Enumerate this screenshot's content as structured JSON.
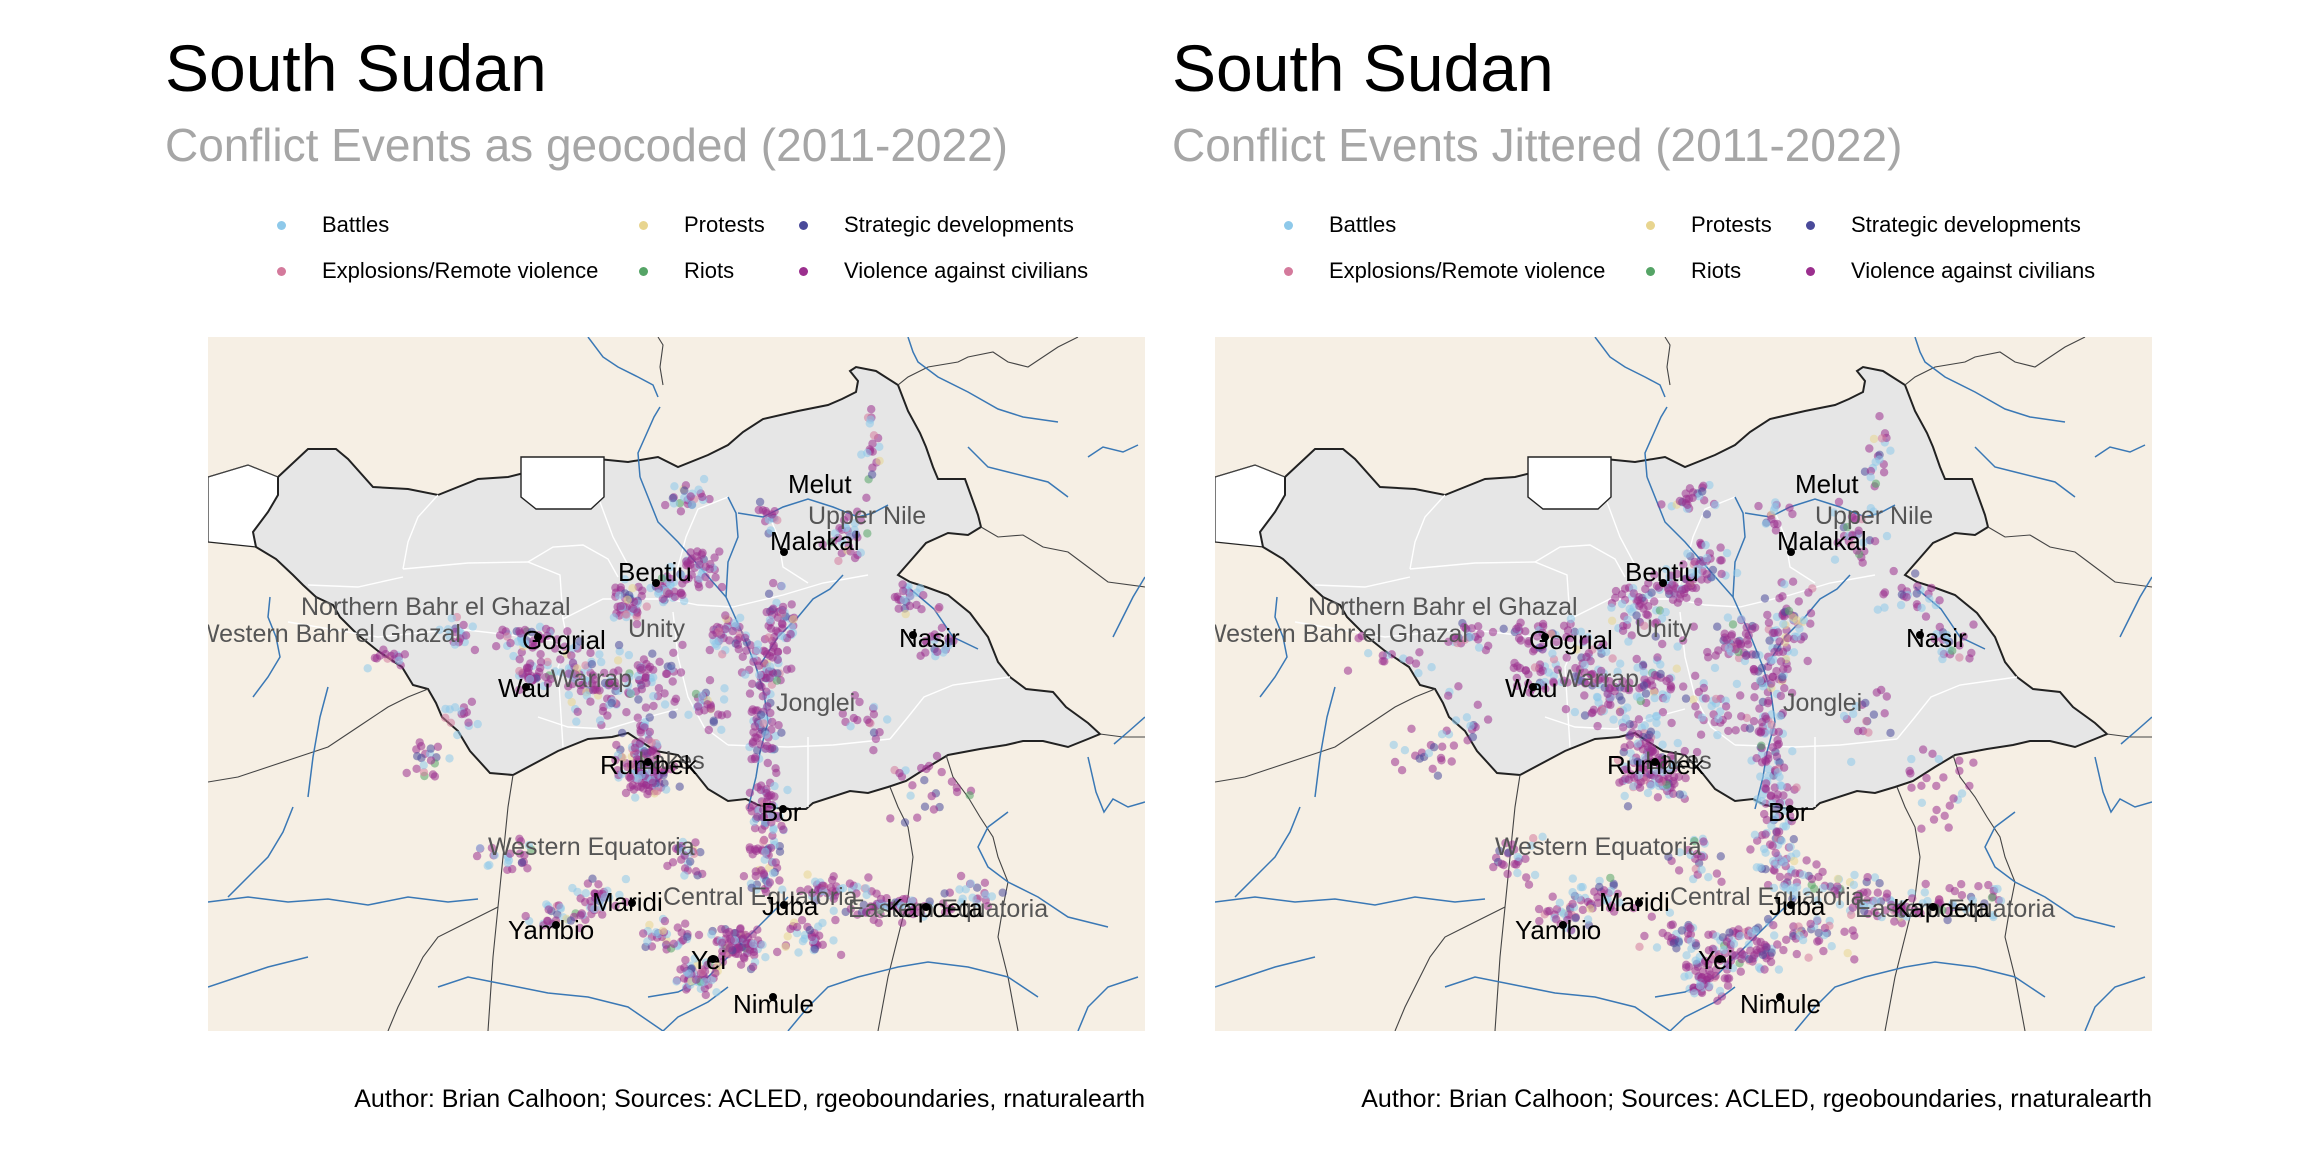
{
  "colors": {
    "background": "#f6efe4",
    "country_fill": "#e6e6e6",
    "neighbor_fill": "#ffffff",
    "border": "#222222",
    "internal_border": "#ffffff",
    "river": "#3a78b5",
    "violence": "#9b2f8e",
    "battles": "#8ec9ea",
    "explosions": "#d47a9c",
    "protests": "#e8d58f",
    "riots": "#55a466",
    "strategic": "#4a4a9a"
  },
  "legend": [
    {
      "label": "Battles",
      "color_key": "battles"
    },
    {
      "label": "Explosions/Remote violence",
      "color_key": "explosions"
    },
    {
      "label": "Protests",
      "color_key": "protests"
    },
    {
      "label": "Riots",
      "color_key": "riots"
    },
    {
      "label": "Strategic developments",
      "color_key": "strategic"
    },
    {
      "label": "Violence against civilians",
      "color_key": "violence"
    }
  ],
  "panels": [
    {
      "title": "South Sudan",
      "subtitle": "Conflict Events as geocoded (2011-2022)",
      "caption": "Author: Brian Calhoon; Sources: ACLED, rgeoboundaries, rnaturalearth",
      "jitter": 0
    },
    {
      "title": "South Sudan",
      "subtitle": "Conflict Events Jittered (2011-2022)",
      "caption": "Author: Brian Calhoon; Sources: ACLED, rgeoboundaries, rnaturalearth",
      "jitter": 1
    }
  ],
  "regions": [
    {
      "name": "Northern Bahr el Ghazal"
    },
    {
      "name": "Western Bahr el Ghazal"
    },
    {
      "name": "Upper Nile"
    },
    {
      "name": "Unity"
    },
    {
      "name": "Warrap"
    },
    {
      "name": "Jonglei"
    },
    {
      "name": "Lakes"
    },
    {
      "name": "Western Equatoria"
    },
    {
      "name": "Central Equatoria"
    },
    {
      "name": "Eastern Equatoria"
    }
  ],
  "cities": [
    {
      "name": "Melut"
    },
    {
      "name": "Malakal"
    },
    {
      "name": "Bentiu"
    },
    {
      "name": "Nasir"
    },
    {
      "name": "Gogrial"
    },
    {
      "name": "Wau"
    },
    {
      "name": "Rumbek"
    },
    {
      "name": "Bor"
    },
    {
      "name": "Maridi"
    },
    {
      "name": "Yambio"
    },
    {
      "name": "Juba"
    },
    {
      "name": "Kapoeta"
    },
    {
      "name": "Yei"
    },
    {
      "name": "Nimule"
    }
  ]
}
